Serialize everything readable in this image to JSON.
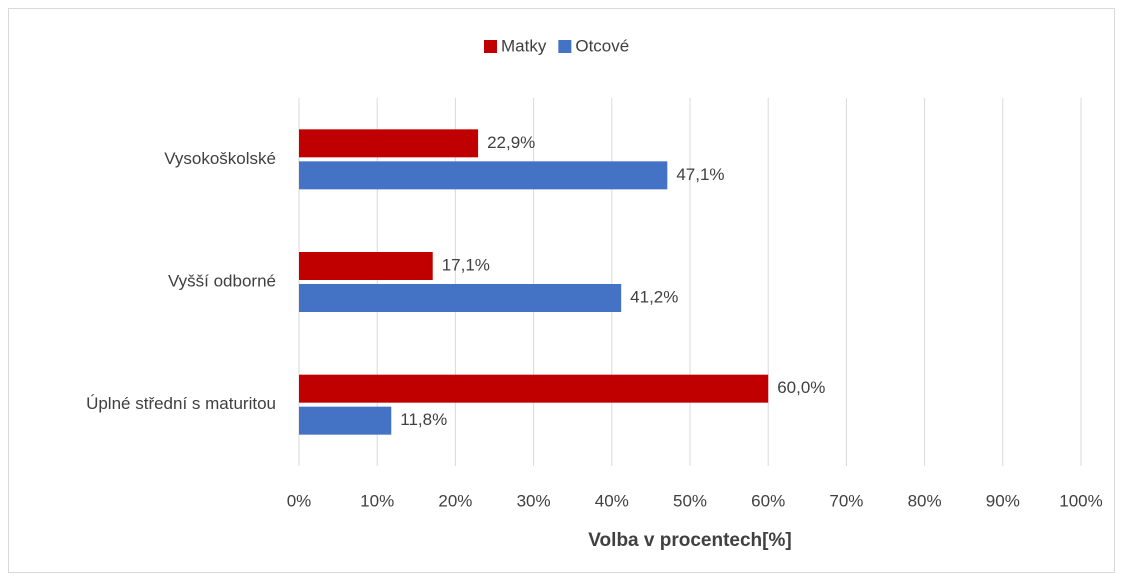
{
  "chart_data": {
    "type": "bar",
    "orientation": "horizontal",
    "x_label": "Volba v procentech[%]",
    "categories": [
      "Vysokoškolské",
      "Vyšší odborné",
      "Úplné střední s maturitou"
    ],
    "series": [
      {
        "name": "Matky",
        "color": "#c00000",
        "values": [
          22.9,
          17.1,
          60.0
        ],
        "value_labels": [
          "22,9%",
          "17,1%",
          "60,0%"
        ]
      },
      {
        "name": "Otcové",
        "color": "#4472c4",
        "values": [
          47.1,
          41.2,
          11.8
        ],
        "value_labels": [
          "47,1%",
          "41,2%",
          "11,8%"
        ]
      }
    ],
    "xlim": [
      0,
      100
    ],
    "xticks": [
      {
        "value": 0,
        "label": "0%"
      },
      {
        "value": 10,
        "label": "10%"
      },
      {
        "value": 20,
        "label": "20%"
      },
      {
        "value": 30,
        "label": "30%"
      },
      {
        "value": 40,
        "label": "40%"
      },
      {
        "value": 50,
        "label": "50%"
      },
      {
        "value": 60,
        "label": "60%"
      },
      {
        "value": 70,
        "label": "70%"
      },
      {
        "value": 80,
        "label": "80%"
      },
      {
        "value": 90,
        "label": "90%"
      },
      {
        "value": 100,
        "label": "100%"
      }
    ],
    "grid": true,
    "legend": "top"
  }
}
